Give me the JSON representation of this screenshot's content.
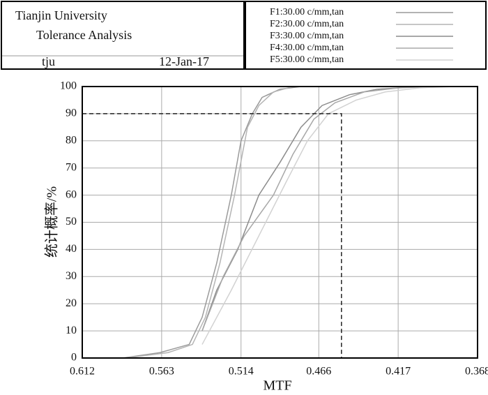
{
  "chart_data": {
    "type": "line",
    "header": {
      "org": "Tianjin University",
      "title": "Tolerance Analysis",
      "user": "tju",
      "date": "12-Jan-17"
    },
    "xlabel": "MTF",
    "ylabel": "统计概率/%",
    "xlim": [
      0.612,
      0.368
    ],
    "ylim": [
      0,
      100
    ],
    "xticks": [
      0.612,
      0.563,
      0.514,
      0.466,
      0.417,
      0.368
    ],
    "yticks": [
      0,
      10,
      20,
      30,
      40,
      50,
      60,
      70,
      80,
      90,
      100
    ],
    "grid": true,
    "reference": {
      "x": 0.452,
      "y": 90
    },
    "series": [
      {
        "name": "F1:30.00 c/mm,tan",
        "color": "#9a9a9a",
        "x": [
          0.587,
          0.564,
          0.546,
          0.538,
          0.529,
          0.52,
          0.514,
          0.507,
          0.501,
          0.49,
          0.477
        ],
        "values": [
          0,
          2,
          5,
          15,
          35,
          60,
          80,
          90,
          96,
          99,
          100
        ]
      },
      {
        "name": "F2:30.00 c/mm,tan",
        "color": "#b4b4b4",
        "x": [
          0.585,
          0.559,
          0.544,
          0.536,
          0.527,
          0.518,
          0.51,
          0.503,
          0.494,
          0.482
        ],
        "values": [
          0,
          2,
          5,
          15,
          35,
          60,
          85,
          93,
          98,
          100
        ]
      },
      {
        "name": "F3:30.00 c/mm,tan",
        "color": "#8c8c8c",
        "x": [
          0.538,
          0.529,
          0.516,
          0.503,
          0.49,
          0.477,
          0.464,
          0.447,
          0.43,
          0.404
        ],
        "values": [
          10,
          25,
          40,
          60,
          72,
          85,
          93,
          97,
          99,
          100
        ]
      },
      {
        "name": "F4:30.00 c/mm,tan",
        "color": "#a8a8a8",
        "x": [
          0.538,
          0.525,
          0.512,
          0.494,
          0.482,
          0.469,
          0.456,
          0.438,
          0.417,
          0.395
        ],
        "values": [
          10,
          30,
          45,
          60,
          75,
          88,
          94,
          98,
          99.5,
          100
        ]
      },
      {
        "name": "F5:30.00 c/mm,tan",
        "color": "#d2d2d2",
        "x": [
          0.538,
          0.52,
          0.503,
          0.486,
          0.473,
          0.46,
          0.443,
          0.425,
          0.404,
          0.382
        ],
        "values": [
          5,
          25,
          45,
          65,
          80,
          90,
          95,
          98,
          99.5,
          100
        ]
      }
    ]
  }
}
